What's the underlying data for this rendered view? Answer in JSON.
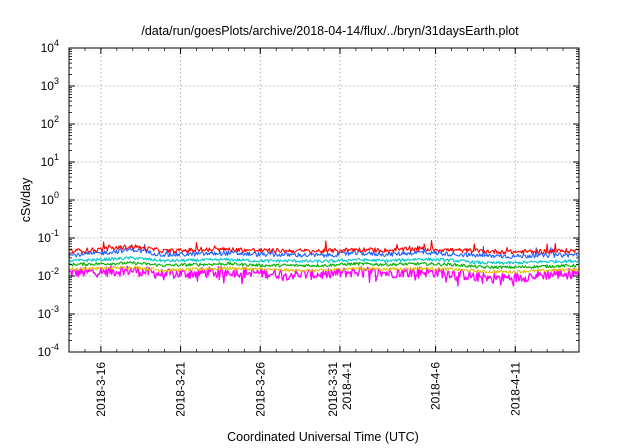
{
  "chart_data": {
    "type": "line",
    "title": "/data/run/goesPlots/archive/2018-04-14/flux/../bryn/31daysEarth.plot",
    "xlabel": "Coordinated Universal Time (UTC)",
    "ylabel": "cSv/day",
    "yscale": "log",
    "ylim": [
      0.0001,
      10000
    ],
    "xlim": [
      "2018-03-14",
      "2018-04-15"
    ],
    "grid": true,
    "ytick_exponents": [
      "-4",
      "-3",
      "-2",
      "-1",
      "0",
      "1",
      "2",
      "3",
      "4"
    ],
    "ytick_base": "10",
    "xticks": [
      {
        "date": "2018-03-16",
        "lines": [
          "2018-3-16"
        ]
      },
      {
        "date": "2018-03-21",
        "lines": [
          "2018-3-21"
        ]
      },
      {
        "date": "2018-03-26",
        "lines": [
          "2018-3-26"
        ]
      },
      {
        "date": "2018-03-31",
        "lines": [
          "2018-3-31",
          "2018-4-1"
        ]
      },
      {
        "date": "2018-04-06",
        "lines": [
          "2018-4-6"
        ]
      },
      {
        "date": "2018-04-11",
        "lines": [
          "2018-4-11"
        ]
      }
    ],
    "series": [
      {
        "color": "#ff0000",
        "values": [
          {
            "x": "2018-03-14",
            "y": 0.045
          },
          {
            "x": "2018-03-16",
            "y": 0.05
          },
          {
            "x": "2018-03-18",
            "y": 0.06
          },
          {
            "x": "2018-03-20",
            "y": 0.045
          },
          {
            "x": "2018-03-22",
            "y": 0.048
          },
          {
            "x": "2018-03-24",
            "y": 0.05
          },
          {
            "x": "2018-03-26",
            "y": 0.047
          },
          {
            "x": "2018-03-28",
            "y": 0.046
          },
          {
            "x": "2018-03-30",
            "y": 0.045
          },
          {
            "x": "2018-04-01",
            "y": 0.05
          },
          {
            "x": "2018-04-03",
            "y": 0.047
          },
          {
            "x": "2018-04-05",
            "y": 0.052
          },
          {
            "x": "2018-04-07",
            "y": 0.048
          },
          {
            "x": "2018-04-09",
            "y": 0.045
          },
          {
            "x": "2018-04-11",
            "y": 0.043
          },
          {
            "x": "2018-04-13",
            "y": 0.045
          },
          {
            "x": "2018-04-15",
            "y": 0.046
          }
        ]
      },
      {
        "color": "#2060ff",
        "values": [
          {
            "x": "2018-03-14",
            "y": 0.035
          },
          {
            "x": "2018-03-16",
            "y": 0.04
          },
          {
            "x": "2018-03-18",
            "y": 0.05
          },
          {
            "x": "2018-03-20",
            "y": 0.036
          },
          {
            "x": "2018-03-22",
            "y": 0.038
          },
          {
            "x": "2018-03-24",
            "y": 0.04
          },
          {
            "x": "2018-03-26",
            "y": 0.037
          },
          {
            "x": "2018-03-28",
            "y": 0.036
          },
          {
            "x": "2018-03-30",
            "y": 0.035
          },
          {
            "x": "2018-04-01",
            "y": 0.04
          },
          {
            "x": "2018-04-03",
            "y": 0.037
          },
          {
            "x": "2018-04-05",
            "y": 0.042
          },
          {
            "x": "2018-04-07",
            "y": 0.038
          },
          {
            "x": "2018-04-09",
            "y": 0.034
          },
          {
            "x": "2018-04-11",
            "y": 0.033
          },
          {
            "x": "2018-04-13",
            "y": 0.035
          },
          {
            "x": "2018-04-15",
            "y": 0.036
          }
        ]
      },
      {
        "color": "#00c8c8",
        "values": [
          {
            "x": "2018-03-14",
            "y": 0.025
          },
          {
            "x": "2018-03-16",
            "y": 0.027
          },
          {
            "x": "2018-03-18",
            "y": 0.03
          },
          {
            "x": "2018-03-20",
            "y": 0.025
          },
          {
            "x": "2018-03-22",
            "y": 0.026
          },
          {
            "x": "2018-03-24",
            "y": 0.027
          },
          {
            "x": "2018-03-26",
            "y": 0.025
          },
          {
            "x": "2018-03-28",
            "y": 0.025
          },
          {
            "x": "2018-03-30",
            "y": 0.024
          },
          {
            "x": "2018-04-01",
            "y": 0.027
          },
          {
            "x": "2018-04-03",
            "y": 0.025
          },
          {
            "x": "2018-04-05",
            "y": 0.028
          },
          {
            "x": "2018-04-07",
            "y": 0.026
          },
          {
            "x": "2018-04-09",
            "y": 0.022
          },
          {
            "x": "2018-04-11",
            "y": 0.022
          },
          {
            "x": "2018-04-13",
            "y": 0.024
          },
          {
            "x": "2018-04-15",
            "y": 0.025
          }
        ]
      },
      {
        "color": "#00b000",
        "values": [
          {
            "x": "2018-03-14",
            "y": 0.02
          },
          {
            "x": "2018-03-16",
            "y": 0.021
          },
          {
            "x": "2018-03-18",
            "y": 0.022
          },
          {
            "x": "2018-03-20",
            "y": 0.019
          },
          {
            "x": "2018-03-22",
            "y": 0.02
          },
          {
            "x": "2018-03-24",
            "y": 0.021
          },
          {
            "x": "2018-03-26",
            "y": 0.019
          },
          {
            "x": "2018-03-28",
            "y": 0.019
          },
          {
            "x": "2018-03-30",
            "y": 0.019
          },
          {
            "x": "2018-04-01",
            "y": 0.021
          },
          {
            "x": "2018-04-03",
            "y": 0.02
          },
          {
            "x": "2018-04-05",
            "y": 0.021
          },
          {
            "x": "2018-04-07",
            "y": 0.02
          },
          {
            "x": "2018-04-09",
            "y": 0.017
          },
          {
            "x": "2018-04-11",
            "y": 0.017
          },
          {
            "x": "2018-04-13",
            "y": 0.018
          },
          {
            "x": "2018-04-15",
            "y": 0.019
          }
        ]
      },
      {
        "color": "#e0c000",
        "values": [
          {
            "x": "2018-03-14",
            "y": 0.015
          },
          {
            "x": "2018-03-16",
            "y": 0.016
          },
          {
            "x": "2018-03-18",
            "y": 0.017
          },
          {
            "x": "2018-03-20",
            "y": 0.014
          },
          {
            "x": "2018-03-22",
            "y": 0.015
          },
          {
            "x": "2018-03-24",
            "y": 0.016
          },
          {
            "x": "2018-03-26",
            "y": 0.015
          },
          {
            "x": "2018-03-28",
            "y": 0.014
          },
          {
            "x": "2018-03-30",
            "y": 0.014
          },
          {
            "x": "2018-04-01",
            "y": 0.016
          },
          {
            "x": "2018-04-03",
            "y": 0.015
          },
          {
            "x": "2018-04-05",
            "y": 0.016
          },
          {
            "x": "2018-04-07",
            "y": 0.015
          },
          {
            "x": "2018-04-09",
            "y": 0.013
          },
          {
            "x": "2018-04-11",
            "y": 0.013
          },
          {
            "x": "2018-04-13",
            "y": 0.014
          },
          {
            "x": "2018-04-15",
            "y": 0.015
          }
        ]
      },
      {
        "color": "#ff00ff",
        "values": [
          {
            "x": "2018-03-14",
            "y": 0.012
          },
          {
            "x": "2018-03-16",
            "y": 0.013
          },
          {
            "x": "2018-03-18",
            "y": 0.014
          },
          {
            "x": "2018-03-20",
            "y": 0.011
          },
          {
            "x": "2018-03-22",
            "y": 0.012
          },
          {
            "x": "2018-03-24",
            "y": 0.013
          },
          {
            "x": "2018-03-26",
            "y": 0.012
          },
          {
            "x": "2018-03-28",
            "y": 0.011
          },
          {
            "x": "2018-03-30",
            "y": 0.011
          },
          {
            "x": "2018-04-01",
            "y": 0.013
          },
          {
            "x": "2018-04-03",
            "y": 0.012
          },
          {
            "x": "2018-04-05",
            "y": 0.013
          },
          {
            "x": "2018-04-07",
            "y": 0.012
          },
          {
            "x": "2018-04-09",
            "y": 0.009
          },
          {
            "x": "2018-04-11",
            "y": 0.009
          },
          {
            "x": "2018-04-13",
            "y": 0.011
          },
          {
            "x": "2018-04-15",
            "y": 0.012
          }
        ]
      }
    ]
  }
}
